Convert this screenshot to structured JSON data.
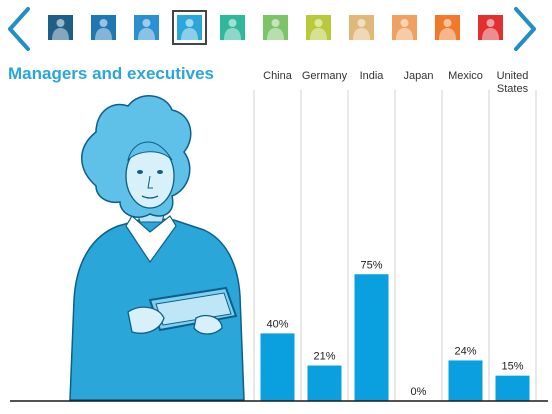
{
  "header": {
    "title": "Managers and executives",
    "thumbnails": [
      {
        "name": "thumb-1",
        "color": "#1f5f87"
      },
      {
        "name": "thumb-2",
        "color": "#1f77b4"
      },
      {
        "name": "thumb-3",
        "color": "#2b8fd0"
      },
      {
        "name": "thumb-4",
        "color": "#2aa6d9",
        "selected": true
      },
      {
        "name": "thumb-5",
        "color": "#2fb89b"
      },
      {
        "name": "thumb-6",
        "color": "#7cc36a"
      },
      {
        "name": "thumb-7",
        "color": "#b8c93a"
      },
      {
        "name": "thumb-8",
        "color": "#e0b97a"
      },
      {
        "name": "thumb-9",
        "color": "#f0a060"
      },
      {
        "name": "thumb-10",
        "color": "#f07a2a"
      },
      {
        "name": "thumb-11",
        "color": "#e03030"
      }
    ]
  },
  "chart_data": {
    "type": "bar",
    "categories": [
      "China",
      "Germany",
      "India",
      "Japan",
      "Mexico",
      "United States"
    ],
    "category_lines": [
      [
        "China"
      ],
      [
        "Germany"
      ],
      [
        "India"
      ],
      [
        "Japan"
      ],
      [
        "Mexico"
      ],
      [
        "United",
        "States"
      ]
    ],
    "values": [
      40,
      21,
      75,
      0,
      24,
      15
    ],
    "value_labels": [
      "40%",
      "21%",
      "75%",
      "0%",
      "24%",
      "15%"
    ],
    "bar_color": "#0aa0e0",
    "ylim": [
      0,
      100
    ],
    "grid": "vertical separators"
  }
}
